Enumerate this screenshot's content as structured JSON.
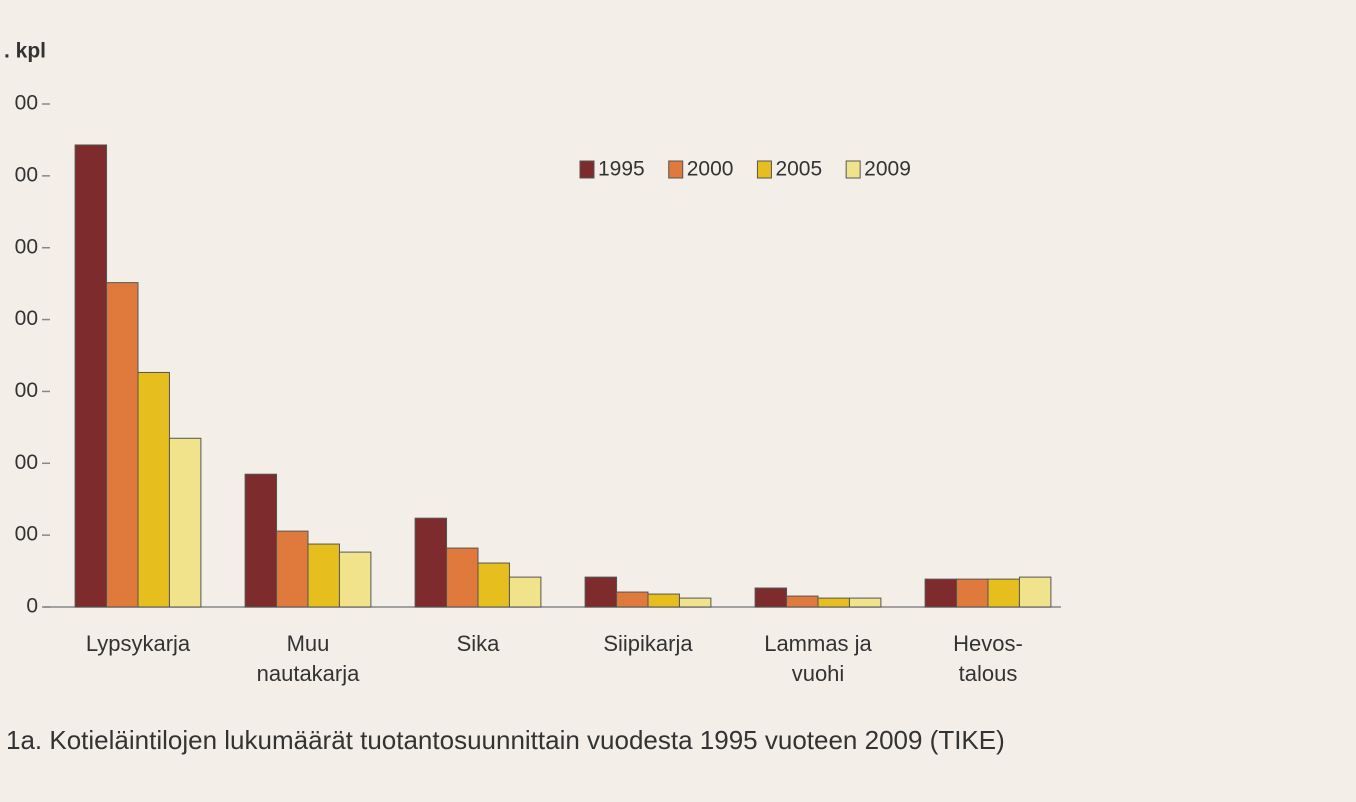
{
  "chart_data": {
    "type": "bar",
    "ylabel": ". kpl",
    "caption": "1a. Kotieläintilojen lukumäärät tuotantosuunnittain vuodesta 1995 vuoteen 2009 (TIKE)",
    "categories": [
      "Lypsykarja",
      "Muu\nnautakarja",
      "Sika",
      "Siipikarja",
      "Lammas ja\nvuohi",
      "Hevos-\ntalous"
    ],
    "series": [
      {
        "name": "1995",
        "color": "#7d2b2c",
        "values": [
          32150,
          9240,
          6180,
          2080,
          1320,
          1940
        ]
      },
      {
        "name": "2000",
        "color": "#df7a3c",
        "values": [
          22570,
          5280,
          4100,
          1040,
          760,
          1940
        ]
      },
      {
        "name": "2005",
        "color": "#e6be1e",
        "values": [
          16320,
          4380,
          3060,
          900,
          620,
          1940
        ]
      },
      {
        "name": "2009",
        "color": "#f1e38c",
        "values": [
          11740,
          3820,
          2080,
          620,
          620,
          2080
        ]
      }
    ],
    "ylim": [
      0,
      35000
    ],
    "yticks": [
      0,
      {
        "value": 5000,
        "label": "00"
      },
      {
        "value": 10000,
        "label": "00"
      },
      {
        "value": 15000,
        "label": "00"
      },
      {
        "value": 20000,
        "label": "00"
      },
      {
        "value": 25000,
        "label": "00"
      },
      {
        "value": 30000,
        "label": "00"
      },
      {
        "value": 35000,
        "label": "00"
      }
    ],
    "legend": "top-right"
  }
}
